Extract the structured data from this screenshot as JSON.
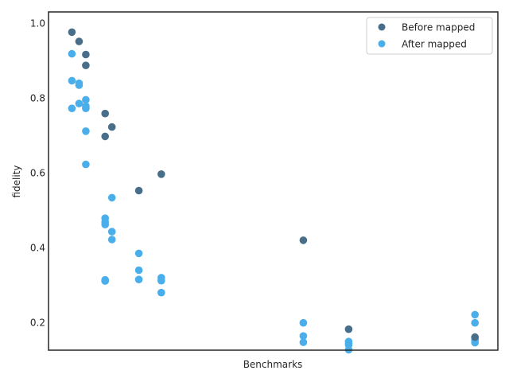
{
  "chart_data": {
    "type": "scatter",
    "xlabel": "Benchmarks",
    "ylabel": "fidelity",
    "ylim": [
      0.125,
      1.03
    ],
    "xlim": [
      0,
      100
    ],
    "y_ticks": [
      "0.2",
      "0.4",
      "0.6",
      "0.8",
      "1.0"
    ],
    "grid": false,
    "legend_position": "top-right",
    "series": [
      {
        "name": "After mapped",
        "color": "#4aaeea",
        "x": [
          5.2,
          5.2,
          5.2,
          6.8,
          6.8,
          6.8,
          8.3,
          8.3,
          8.3,
          8.3,
          8.3,
          12.6,
          12.6,
          12.6,
          12.6,
          12.6,
          12.6,
          14.1,
          14.1,
          14.1,
          20.1,
          20.1,
          20.1,
          25.1,
          25.1,
          25.1,
          56.7,
          56.7,
          56.7,
          66.8,
          66.8,
          66.8,
          66.8,
          94.9,
          94.9,
          94.9,
          94.9,
          94.9
        ],
        "y": [
          0.918,
          0.846,
          0.772,
          0.839,
          0.834,
          0.785,
          0.795,
          0.778,
          0.772,
          0.711,
          0.622,
          0.478,
          0.468,
          0.461,
          0.313,
          0.311,
          0.31,
          0.533,
          0.442,
          0.421,
          0.384,
          0.339,
          0.314,
          0.319,
          0.311,
          0.279,
          0.198,
          0.163,
          0.146,
          0.148,
          0.143,
          0.139,
          0.126,
          0.22,
          0.198,
          0.158,
          0.152,
          0.145
        ]
      },
      {
        "name": "Before mapped",
        "color": "#486e8a",
        "x": [
          5.2,
          6.8,
          8.3,
          8.3,
          12.6,
          12.6,
          14.1,
          20.1,
          25.1,
          56.7,
          66.8,
          94.9
        ],
        "y": [
          0.976,
          0.951,
          0.916,
          0.887,
          0.758,
          0.697,
          0.722,
          0.552,
          0.596,
          0.419,
          0.181,
          0.16
        ]
      }
    ],
    "legend": [
      {
        "label": "Before mapped",
        "color": "#486e8a"
      },
      {
        "label": "After mapped",
        "color": "#4aaeea"
      }
    ]
  }
}
